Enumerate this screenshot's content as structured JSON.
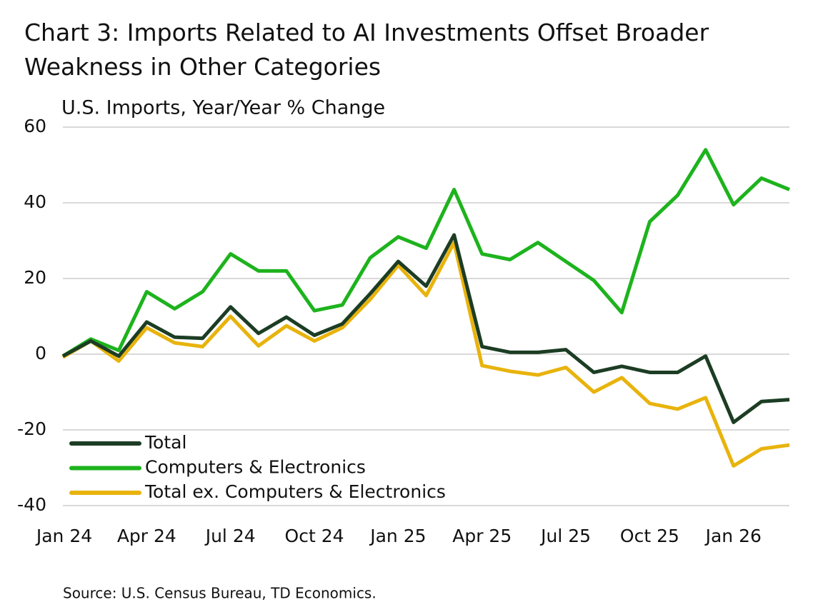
{
  "chart_data": {
    "type": "line",
    "title": "Chart 3: Imports Related to AI Investments Offset Broader Weakness in Other Categories",
    "subtitle": "U.S. Imports, Year/Year % Change",
    "source": "Source: U.S. Census Bureau, TD Economics.",
    "categories": [
      "Jan 24",
      null,
      null,
      "Apr 24",
      null,
      null,
      "Jul 24",
      null,
      null,
      "Oct 24",
      null,
      null,
      "Jan 25",
      null,
      null,
      "Apr 25",
      null,
      null,
      "Jul 25",
      null,
      null,
      "Oct 25",
      null,
      null,
      "Jan 26",
      null,
      null
    ],
    "series": [
      {
        "name": "Total",
        "color": "#1c3d24",
        "values": [
          -0.5,
          3.5,
          -0.5,
          8.5,
          4.5,
          4.2,
          12.5,
          5.5,
          9.8,
          5,
          8,
          16,
          24.5,
          18,
          31.5,
          2,
          0.5,
          0.5,
          1.2,
          -4.8,
          -3.2,
          -4.8,
          -4.8,
          -0.5,
          -18,
          -12.5,
          -12
        ]
      },
      {
        "name": "Computers & Electronics",
        "color": "#1db31d",
        "values": [
          -0.5,
          4,
          1,
          16.5,
          12,
          16.5,
          26.5,
          22,
          22,
          11.5,
          13,
          25.5,
          31,
          28,
          43.5,
          26.5,
          25,
          29.5,
          24.5,
          19.5,
          11,
          35,
          42,
          54,
          39.5,
          46.5,
          43.5
        ]
      },
      {
        "name": "Total ex. Computers & Electronics",
        "color": "#e8b30c",
        "values": [
          -0.8,
          3.5,
          -1.8,
          7,
          3,
          2,
          10,
          2.2,
          7.5,
          3.5,
          7,
          14.5,
          23.5,
          15.5,
          29.5,
          -3,
          -4.5,
          -5.5,
          -3.5,
          -10,
          -6.2,
          -13,
          -14.5,
          -11.5,
          -29.5,
          -25,
          -24
        ]
      }
    ],
    "ylim": [
      -40,
      60
    ],
    "yticks": [
      -40,
      -20,
      0,
      20,
      40,
      60
    ],
    "grid": true,
    "legend": "lower-left"
  }
}
